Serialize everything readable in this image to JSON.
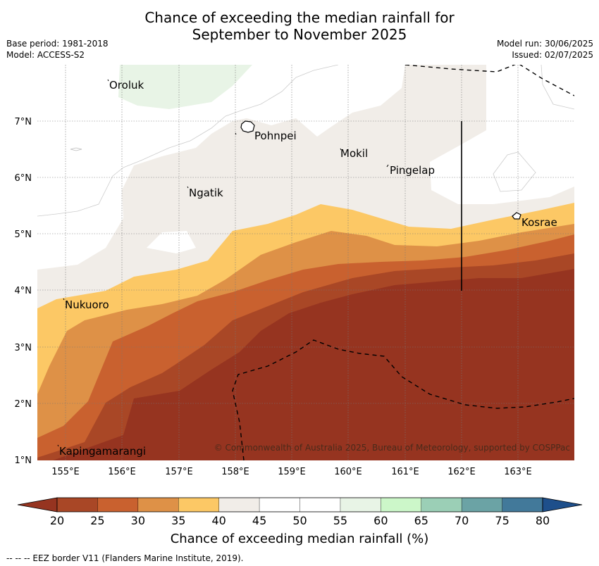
{
  "title_line1": "Chance of exceeding the median rainfall for",
  "title_line2": "September to November 2025",
  "base_period": "Base period: 1981-2018",
  "model": "Model: ACCESS-S2",
  "model_run": "Model run: 30/06/2025",
  "issued": "Issued: 02/07/2025",
  "places": [
    {
      "name": "Oroluk"
    },
    {
      "name": "Pohnpei"
    },
    {
      "name": "Mokil"
    },
    {
      "name": "Pingelap"
    },
    {
      "name": "Ngatik"
    },
    {
      "name": "Kosrae"
    },
    {
      "name": "Nukuoro"
    },
    {
      "name": "Kapingamarangi"
    }
  ],
  "x_ticks": [
    "155°E",
    "156°E",
    "157°E",
    "158°E",
    "159°E",
    "160°E",
    "161°E",
    "162°E",
    "163°E"
  ],
  "y_ticks": [
    "7°N",
    "6°N",
    "5°N",
    "4°N",
    "3°N",
    "2°N",
    "1°N"
  ],
  "copyright": "© Commonwealth of Australia 2025, Bureau of Meteorology, supported by COSPPac",
  "colorbar": {
    "labels": [
      "20",
      "25",
      "30",
      "35",
      "40",
      "45",
      "50",
      "55",
      "60",
      "65",
      "70",
      "75",
      "80"
    ],
    "colors": [
      "#a94726",
      "#c9612f",
      "#de9147",
      "#fcc865",
      "#f1ede8",
      "#ffffff",
      "#ffffff",
      "#e8f4e6",
      "#ccf7c9",
      "#9bcfb6",
      "#6ba3a5",
      "#42799a"
    ],
    "under_color": "#963420",
    "over_color": "#1e4f8b",
    "title": "Chance of exceeding median rainfall (%)"
  },
  "eez_note": "--  --  -- EEZ border V11 (Flanders Marine Institute, 2019).",
  "colors": {
    "band_lt20": "#963420",
    "band_20_25": "#a94726",
    "band_25_30": "#c9612f",
    "band_30_35": "#de9147",
    "band_35_40": "#fcc865",
    "band_40_45": "#f1ede8",
    "band_55_60": "#e8f4e6"
  }
}
